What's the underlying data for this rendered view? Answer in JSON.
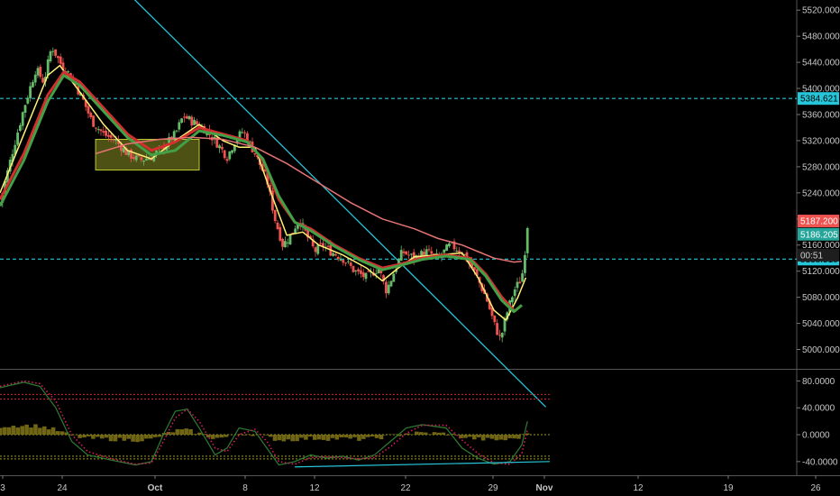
{
  "chart_data": [
    {
      "type": "candlestick",
      "panel": "price",
      "ylim": [
        4980,
        5530
      ],
      "y_ticks": [
        5000,
        5040,
        5080,
        5120,
        5160,
        5200,
        5240,
        5280,
        5320,
        5360,
        5400,
        5440,
        5480,
        5520
      ],
      "y_tick_labels": [
        "5000.000",
        "5040.000",
        "5080.000",
        "5120.000",
        "5160.000",
        "5200.000",
        "5240.000",
        "5280.000",
        "5320.000",
        "5360.000",
        "5400.000",
        "5440.000",
        "5480.000",
        "5520.000"
      ],
      "x_tick_labels": [
        "3",
        "24",
        "Oct",
        "8",
        "12",
        "22",
        "29",
        "Nov",
        "12",
        "19",
        "26"
      ],
      "grid": false,
      "horizontal_levels": [
        {
          "value": 5384.621,
          "label": "5384.621",
          "color": "#26c6da"
        },
        {
          "value": 5138.51,
          "label": "5138.510",
          "color": "#26c6da"
        }
      ],
      "price_badges": [
        {
          "value": 5187.2,
          "label": "5187.200",
          "color": "#ef5350",
          "text_color": "#ffffff"
        },
        {
          "value": 5186.205,
          "label": "5186.205",
          "color": "#26a69a",
          "text_color": "#ffffff"
        },
        {
          "value": 5164,
          "label": "00:51",
          "color": "#1e1e1e",
          "text_color": "#cccccc"
        }
      ],
      "trendline": {
        "from": [
          0.25,
          5438
        ],
        "to": [
          0.46,
          5184
        ],
        "color": "#26c6da"
      },
      "highlight_box": {
        "x_range": [
          0.12,
          0.25
        ],
        "y_range": [
          5275,
          5322
        ],
        "color": "#c0ca33"
      },
      "close_path": [
        [
          0.0,
          5225
        ],
        [
          0.015,
          5300
        ],
        [
          0.03,
          5370
        ],
        [
          0.045,
          5430
        ],
        [
          0.055,
          5410
        ],
        [
          0.065,
          5465
        ],
        [
          0.075,
          5440
        ],
        [
          0.085,
          5425
        ],
        [
          0.095,
          5405
        ],
        [
          0.105,
          5380
        ],
        [
          0.115,
          5350
        ],
        [
          0.13,
          5330
        ],
        [
          0.145,
          5320
        ],
        [
          0.16,
          5300
        ],
        [
          0.175,
          5290
        ],
        [
          0.19,
          5295
        ],
        [
          0.205,
          5310
        ],
        [
          0.22,
          5330
        ],
        [
          0.23,
          5358
        ],
        [
          0.24,
          5350
        ],
        [
          0.255,
          5340
        ],
        [
          0.27,
          5320
        ],
        [
          0.285,
          5295
        ],
        [
          0.295,
          5320
        ],
        [
          0.305,
          5335
        ],
        [
          0.32,
          5300
        ],
        [
          0.335,
          5260
        ],
        [
          0.345,
          5200
        ],
        [
          0.355,
          5160
        ],
        [
          0.365,
          5175
        ],
        [
          0.375,
          5200
        ],
        [
          0.385,
          5175
        ],
        [
          0.395,
          5150
        ],
        [
          0.405,
          5160
        ],
        [
          0.415,
          5150
        ],
        [
          0.43,
          5140
        ],
        [
          0.445,
          5120
        ],
        [
          0.46,
          5110
        ],
        [
          0.475,
          5125
        ],
        [
          0.485,
          5090
        ],
        [
          0.495,
          5120
        ],
        [
          0.505,
          5150
        ],
        [
          0.52,
          5140
        ],
        [
          0.535,
          5150
        ],
        [
          0.55,
          5140
        ],
        [
          0.565,
          5160
        ],
        [
          0.58,
          5150
        ],
        [
          0.595,
          5120
        ],
        [
          0.61,
          5080
        ],
        [
          0.62,
          5040
        ],
        [
          0.628,
          5015
        ],
        [
          0.636,
          5055
        ],
        [
          0.645,
          5090
        ],
        [
          0.655,
          5110
        ],
        [
          0.662,
          5186
        ]
      ],
      "series": [
        {
          "kind": "ma",
          "color": "#fff176",
          "width": 1.5,
          "values": [
            [
              0.0,
              5240
            ],
            [
              0.03,
              5330
            ],
            [
              0.06,
              5420
            ],
            [
              0.075,
              5435
            ],
            [
              0.1,
              5395
            ],
            [
              0.13,
              5345
            ],
            [
              0.16,
              5305
            ],
            [
              0.19,
              5292
            ],
            [
              0.22,
              5320
            ],
            [
              0.25,
              5345
            ],
            [
              0.28,
              5320
            ],
            [
              0.3,
              5310
            ],
            [
              0.32,
              5310
            ],
            [
              0.34,
              5240
            ],
            [
              0.36,
              5175
            ],
            [
              0.38,
              5180
            ],
            [
              0.4,
              5160
            ],
            [
              0.43,
              5145
            ],
            [
              0.46,
              5125
            ],
            [
              0.48,
              5105
            ],
            [
              0.5,
              5125
            ],
            [
              0.52,
              5142
            ],
            [
              0.55,
              5145
            ],
            [
              0.58,
              5148
            ],
            [
              0.6,
              5110
            ],
            [
              0.62,
              5060
            ],
            [
              0.635,
              5045
            ],
            [
              0.65,
              5080
            ],
            [
              0.66,
              5110
            ]
          ]
        },
        {
          "kind": "ma",
          "color": "#d32f2f",
          "width": 3,
          "values": [
            [
              0.0,
              5230
            ],
            [
              0.03,
              5300
            ],
            [
              0.06,
              5390
            ],
            [
              0.08,
              5425
            ],
            [
              0.1,
              5410
            ],
            [
              0.13,
              5370
            ],
            [
              0.16,
              5330
            ],
            [
              0.19,
              5305
            ],
            [
              0.22,
              5318
            ],
            [
              0.25,
              5340
            ],
            [
              0.28,
              5330
            ],
            [
              0.31,
              5320
            ],
            [
              0.33,
              5290
            ],
            [
              0.35,
              5230
            ],
            [
              0.37,
              5195
            ],
            [
              0.39,
              5185
            ],
            [
              0.42,
              5160
            ],
            [
              0.45,
              5140
            ],
            [
              0.48,
              5125
            ],
            [
              0.5,
              5130
            ],
            [
              0.53,
              5140
            ],
            [
              0.56,
              5145
            ],
            [
              0.59,
              5140
            ],
            [
              0.61,
              5115
            ],
            [
              0.63,
              5080
            ],
            [
              0.645,
              5060
            ]
          ]
        },
        {
          "kind": "ma",
          "color": "#43a047",
          "width": 3,
          "values": [
            [
              0.0,
              5220
            ],
            [
              0.03,
              5290
            ],
            [
              0.06,
              5380
            ],
            [
              0.08,
              5420
            ],
            [
              0.1,
              5405
            ],
            [
              0.13,
              5365
            ],
            [
              0.16,
              5325
            ],
            [
              0.19,
              5298
            ],
            [
              0.22,
              5305
            ],
            [
              0.25,
              5335
            ],
            [
              0.28,
              5328
            ],
            [
              0.31,
              5318
            ],
            [
              0.33,
              5292
            ],
            [
              0.35,
              5235
            ],
            [
              0.37,
              5195
            ],
            [
              0.39,
              5182
            ],
            [
              0.42,
              5158
            ],
            [
              0.45,
              5138
            ],
            [
              0.48,
              5122
            ],
            [
              0.5,
              5128
            ],
            [
              0.53,
              5138
            ],
            [
              0.56,
              5143
            ],
            [
              0.59,
              5138
            ],
            [
              0.61,
              5112
            ],
            [
              0.63,
              5075
            ],
            [
              0.645,
              5058
            ],
            [
              0.655,
              5068
            ]
          ]
        },
        {
          "kind": "ma",
          "color": "#e57373",
          "width": 1.5,
          "values": [
            [
              0.12,
              5300
            ],
            [
              0.16,
              5315
            ],
            [
              0.2,
              5322
            ],
            [
              0.24,
              5325
            ],
            [
              0.28,
              5322
            ],
            [
              0.32,
              5310
            ],
            [
              0.36,
              5285
            ],
            [
              0.4,
              5255
            ],
            [
              0.44,
              5225
            ],
            [
              0.48,
              5200
            ],
            [
              0.52,
              5185
            ],
            [
              0.55,
              5170
            ],
            [
              0.58,
              5160
            ],
            [
              0.6,
              5150
            ],
            [
              0.62,
              5140
            ],
            [
              0.645,
              5134
            ],
            [
              0.655,
              5135
            ]
          ]
        }
      ]
    },
    {
      "type": "oscillator",
      "panel": "indicator",
      "ylim": [
        -55,
        90
      ],
      "y_ticks": [
        -40,
        0,
        40,
        80
      ],
      "y_tick_labels": [
        "-40.0000",
        "0.0000",
        "40.0000",
        "80.0000"
      ],
      "levels": [
        {
          "value": 60,
          "color": "#c62828"
        },
        {
          "value": 53,
          "color": "#c62828"
        },
        {
          "value": 0,
          "color": "#9e9d24"
        },
        {
          "value": -32,
          "color": "#9e9d24"
        },
        {
          "value": -36,
          "color": "#9e9d24"
        }
      ],
      "divergence_line": {
        "from": [
          0.37,
          -48
        ],
        "to": [
          0.69,
          -40
        ],
        "color": "#26c6da"
      },
      "series": [
        {
          "name": "",
          "kind": "line",
          "color": "#2e7d32",
          "values": [
            [
              0.0,
              70
            ],
            [
              0.03,
              78
            ],
            [
              0.05,
              72
            ],
            [
              0.07,
              40
            ],
            [
              0.09,
              -10
            ],
            [
              0.11,
              -30
            ],
            [
              0.14,
              -38
            ],
            [
              0.17,
              -45
            ],
            [
              0.19,
              -40
            ],
            [
              0.205,
              0
            ],
            [
              0.22,
              35
            ],
            [
              0.235,
              38
            ],
            [
              0.25,
              10
            ],
            [
              0.27,
              -30
            ],
            [
              0.285,
              -20
            ],
            [
              0.3,
              10
            ],
            [
              0.32,
              5
            ],
            [
              0.335,
              -20
            ],
            [
              0.35,
              -45
            ],
            [
              0.37,
              -40
            ],
            [
              0.39,
              -30
            ],
            [
              0.41,
              -35
            ],
            [
              0.43,
              -32
            ],
            [
              0.45,
              -38
            ],
            [
              0.47,
              -30
            ],
            [
              0.49,
              -10
            ],
            [
              0.51,
              10
            ],
            [
              0.53,
              15
            ],
            [
              0.56,
              10
            ],
            [
              0.58,
              -20
            ],
            [
              0.6,
              -35
            ],
            [
              0.62,
              -44
            ],
            [
              0.64,
              -40
            ],
            [
              0.655,
              -15
            ],
            [
              0.662,
              20
            ]
          ]
        },
        {
          "name": "",
          "kind": "dotted",
          "color": "#d81b60",
          "values": [
            [
              0.0,
              72
            ],
            [
              0.03,
              80
            ],
            [
              0.05,
              76
            ],
            [
              0.07,
              50
            ],
            [
              0.09,
              0
            ],
            [
              0.11,
              -25
            ],
            [
              0.14,
              -36
            ],
            [
              0.17,
              -44
            ],
            [
              0.19,
              -42
            ],
            [
              0.205,
              -10
            ],
            [
              0.22,
              25
            ],
            [
              0.235,
              38
            ],
            [
              0.25,
              20
            ],
            [
              0.27,
              -20
            ],
            [
              0.285,
              -25
            ],
            [
              0.3,
              0
            ],
            [
              0.32,
              8
            ],
            [
              0.335,
              -10
            ],
            [
              0.35,
              -40
            ],
            [
              0.37,
              -44
            ],
            [
              0.39,
              -34
            ],
            [
              0.41,
              -33
            ],
            [
              0.43,
              -34
            ],
            [
              0.45,
              -36
            ],
            [
              0.47,
              -34
            ],
            [
              0.49,
              -18
            ],
            [
              0.51,
              2
            ],
            [
              0.53,
              14
            ],
            [
              0.56,
              14
            ],
            [
              0.58,
              -8
            ],
            [
              0.6,
              -28
            ],
            [
              0.62,
              -42
            ],
            [
              0.64,
              -44
            ],
            [
              0.655,
              -28
            ],
            [
              0.662,
              8
            ]
          ]
        }
      ]
    }
  ]
}
